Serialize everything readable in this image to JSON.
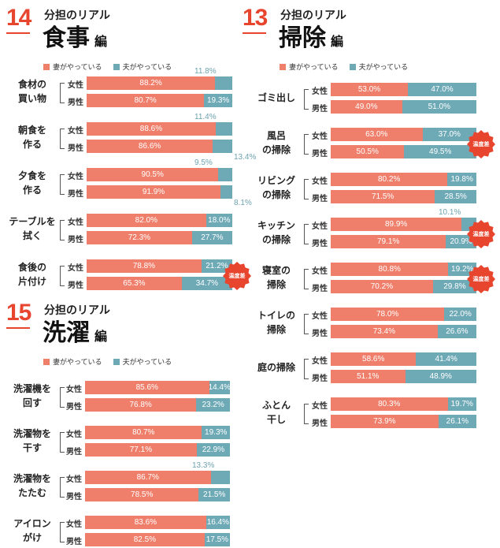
{
  "colors": {
    "wife": "#ef7f6b",
    "husband": "#6ea9b6",
    "accent": "#e8452f",
    "badge": "#e8452f"
  },
  "legend": {
    "wife": "妻がやっている",
    "husband": "夫がやっている"
  },
  "row_labels": {
    "female": "女性",
    "male": "男性"
  },
  "badge_label": "温度差",
  "chart_data": [
    {
      "type": "bar",
      "stacked": true,
      "orientation": "horizontal",
      "number": "14",
      "subtitle": "分担のリアル",
      "title": "食事",
      "title_suffix": "編",
      "series": [
        "妻がやっている",
        "夫がやっている"
      ],
      "xlim": [
        0,
        100
      ],
      "groups": [
        {
          "label": "食材の\n買い物",
          "badge": false,
          "rows": [
            {
              "who": "女性",
              "wife": 88.2,
              "husband": 11.8
            },
            {
              "who": "男性",
              "wife": 80.7,
              "husband": 19.3
            }
          ]
        },
        {
          "label": "朝食を\n作る",
          "badge": false,
          "rows": [
            {
              "who": "女性",
              "wife": 88.6,
              "husband": 11.4
            },
            {
              "who": "男性",
              "wife": 86.6,
              "husband": 13.4
            }
          ]
        },
        {
          "label": "夕食を\n作る",
          "badge": false,
          "rows": [
            {
              "who": "女性",
              "wife": 90.5,
              "husband": 9.5
            },
            {
              "who": "男性",
              "wife": 91.9,
              "husband": 8.1
            }
          ]
        },
        {
          "label": "テーブルを\n拭く",
          "badge": false,
          "rows": [
            {
              "who": "女性",
              "wife": 82.0,
              "husband": 18.0
            },
            {
              "who": "男性",
              "wife": 72.3,
              "husband": 27.7
            }
          ]
        },
        {
          "label": "食後の\n片付け",
          "badge": true,
          "rows": [
            {
              "who": "女性",
              "wife": 78.8,
              "husband": 21.2
            },
            {
              "who": "男性",
              "wife": 65.3,
              "husband": 34.7
            }
          ]
        }
      ]
    },
    {
      "type": "bar",
      "stacked": true,
      "orientation": "horizontal",
      "number": "13",
      "subtitle": "分担のリアル",
      "title": "掃除",
      "title_suffix": "編",
      "series": [
        "妻がやっている",
        "夫がやっている"
      ],
      "xlim": [
        0,
        100
      ],
      "groups": [
        {
          "label": "ゴミ出し",
          "badge": false,
          "rows": [
            {
              "who": "女性",
              "wife": 53.0,
              "husband": 47.0
            },
            {
              "who": "男性",
              "wife": 49.0,
              "husband": 51.0
            }
          ]
        },
        {
          "label": "風呂\nの掃除",
          "badge": true,
          "rows": [
            {
              "who": "女性",
              "wife": 63.0,
              "husband": 37.0
            },
            {
              "who": "男性",
              "wife": 50.5,
              "husband": 49.5
            }
          ]
        },
        {
          "label": "リビング\nの掃除",
          "badge": false,
          "rows": [
            {
              "who": "女性",
              "wife": 80.2,
              "husband": 19.8
            },
            {
              "who": "男性",
              "wife": 71.5,
              "husband": 28.5
            }
          ]
        },
        {
          "label": "キッチン\nの掃除",
          "badge": true,
          "rows": [
            {
              "who": "女性",
              "wife": 89.9,
              "husband": 10.1
            },
            {
              "who": "男性",
              "wife": 79.1,
              "husband": 20.9
            }
          ]
        },
        {
          "label": "寝室の\n掃除",
          "badge": true,
          "rows": [
            {
              "who": "女性",
              "wife": 80.8,
              "husband": 19.2
            },
            {
              "who": "男性",
              "wife": 70.2,
              "husband": 29.8
            }
          ]
        },
        {
          "label": "トイレの\n掃除",
          "badge": false,
          "rows": [
            {
              "who": "女性",
              "wife": 78.0,
              "husband": 22.0
            },
            {
              "who": "男性",
              "wife": 73.4,
              "husband": 26.6
            }
          ]
        },
        {
          "label": "庭の掃除",
          "badge": false,
          "rows": [
            {
              "who": "女性",
              "wife": 58.6,
              "husband": 41.4
            },
            {
              "who": "男性",
              "wife": 51.1,
              "husband": 48.9
            }
          ]
        },
        {
          "label": "ふとん\n干し",
          "badge": false,
          "rows": [
            {
              "who": "女性",
              "wife": 80.3,
              "husband": 19.7
            },
            {
              "who": "男性",
              "wife": 73.9,
              "husband": 26.1
            }
          ]
        }
      ]
    },
    {
      "type": "bar",
      "stacked": true,
      "orientation": "horizontal",
      "number": "15",
      "subtitle": "分担のリアル",
      "title": "洗濯",
      "title_suffix": "編",
      "series": [
        "妻がやっている",
        "夫がやっている"
      ],
      "xlim": [
        0,
        100
      ],
      "groups": [
        {
          "label": "洗濯機を\n回す",
          "badge": false,
          "rows": [
            {
              "who": "女性",
              "wife": 85.6,
              "husband": 14.4
            },
            {
              "who": "男性",
              "wife": 76.8,
              "husband": 23.2
            }
          ]
        },
        {
          "label": "洗濯物を\n干す",
          "badge": false,
          "rows": [
            {
              "who": "女性",
              "wife": 80.7,
              "husband": 19.3
            },
            {
              "who": "男性",
              "wife": 77.1,
              "husband": 22.9
            }
          ]
        },
        {
          "label": "洗濯物を\nたたむ",
          "badge": false,
          "rows": [
            {
              "who": "女性",
              "wife": 86.7,
              "husband": 13.3
            },
            {
              "who": "男性",
              "wife": 78.5,
              "husband": 21.5
            }
          ]
        },
        {
          "label": "アイロン\nがけ",
          "badge": false,
          "rows": [
            {
              "who": "女性",
              "wife": 83.6,
              "husband": 16.4
            },
            {
              "who": "男性",
              "wife": 82.5,
              "husband": 17.5
            }
          ]
        }
      ]
    }
  ]
}
